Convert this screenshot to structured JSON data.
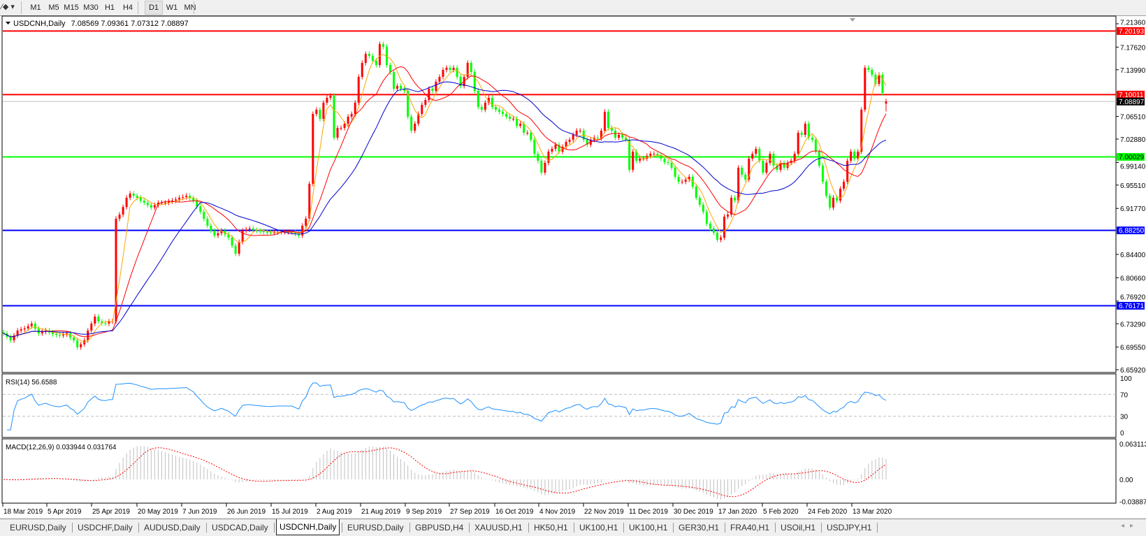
{
  "toolbar": {
    "draw_tool_icon": "line-tool-icon",
    "timeframes": [
      "M1",
      "M5",
      "M15",
      "M30",
      "H1",
      "H4",
      "D1",
      "W1",
      "MN"
    ],
    "active_timeframe": "D1"
  },
  "legend": {
    "symbol": "USDCNH,Daily",
    "ohlc": "7.08569 7.09361 7.07312 7.08897"
  },
  "rsi": {
    "label": "RSI(14) 56.6588",
    "levels": [
      70,
      30
    ],
    "axis_labels": [
      "100",
      "70",
      "30",
      "0"
    ]
  },
  "macd": {
    "label": "MACD(12,26,9) 0.033944 0.031764",
    "axis_labels": [
      "0.063113",
      "0.00",
      "-0.038872"
    ]
  },
  "tabs": [
    "EURUSD,Daily",
    "USDCHF,Daily",
    "AUDUSD,Daily",
    "USDCAD,Daily",
    "USDCNH,Daily",
    "EURUSD,Daily",
    "GBPUSD,H4",
    "XAUUSD,H1",
    "HK50,H1",
    "UK100,H1",
    "UK100,H1",
    "GER30,H1",
    "FRA40,H1",
    "USOil,H1",
    "USDJPY,H1"
  ],
  "active_tab": 4,
  "chart_data": {
    "type": "candlestick",
    "symbol": "USDCNH",
    "timeframe": "Daily",
    "ylim": [
      6.6592,
      7.2136
    ],
    "price_ticks": [
      "7.21360",
      "7.17620",
      "7.13990",
      "7.06510",
      "7.02880",
      "6.99140",
      "6.95510",
      "6.91770",
      "6.84400",
      "6.80660",
      "6.76920",
      "6.73290",
      "6.69550",
      "6.65920"
    ],
    "x_tick_labels": [
      "18 Mar 2019",
      "5 Apr 2019",
      "25 Apr 2019",
      "20 May 2019",
      "7 Jun 2019",
      "26 Jun 2019",
      "15 Jul 2019",
      "2 Aug 2019",
      "21 Aug 2019",
      "9 Sep 2019",
      "27 Sep 2019",
      "16 Oct 2019",
      "4 Nov 2019",
      "22 Nov 2019",
      "11 Dec 2019",
      "30 Dec 2019",
      "17 Jan 2020",
      "5 Feb 2020",
      "24 Feb 2020",
      "13 Mar 2020"
    ],
    "last_bar": {
      "open": 7.08569,
      "high": 7.09361,
      "low": 7.07312,
      "close": 7.08897
    },
    "horizontal_levels": [
      {
        "value": "7.20193",
        "color": "#ff0000"
      },
      {
        "value": "7.10011",
        "color": "#ff0000"
      },
      {
        "value": "7.00029",
        "color": "#00ff00"
      },
      {
        "value": "6.88250",
        "color": "#0000ff"
      },
      {
        "value": "6.76171",
        "color": "#0000ff"
      }
    ],
    "current_price": {
      "value": "7.08897",
      "color": "#000000"
    },
    "colors": {
      "bull": "#ff0000",
      "bear": "#00ff00",
      "rsi": "#1e90ff",
      "macd_hist": "#c0c0c0",
      "macd_signal": "#ff0000"
    },
    "moving_averages": [
      {
        "period": 5,
        "color": "#ffa500"
      },
      {
        "period": 13,
        "color": "#ff0000"
      },
      {
        "period": 25,
        "color": "#0000cd"
      }
    ],
    "closes": [
      6.7175,
      6.712,
      6.7063,
      6.714,
      6.722,
      6.724,
      6.7254,
      6.729,
      6.7332,
      6.725,
      6.7175,
      6.72,
      6.722,
      6.719,
      6.7164,
      6.715,
      6.7142,
      6.716,
      6.7175,
      6.711,
      6.7063,
      6.6951,
      6.7,
      6.7063,
      6.722,
      6.733,
      6.7444,
      6.7366,
      6.734,
      6.7332,
      6.7366,
      6.7366,
      6.9012,
      6.9079,
      6.92,
      6.9348,
      6.9415,
      6.938,
      6.9348,
      6.93,
      6.9269,
      6.923,
      6.9191,
      6.923,
      6.9269,
      6.9269,
      6.9269,
      6.929,
      6.9303,
      6.932,
      6.9348,
      6.936,
      6.9381,
      6.934,
      6.9303,
      6.921,
      6.9124,
      6.901,
      6.89,
      6.882,
      6.8743,
      6.878,
      6.8821,
      6.876,
      6.8709,
      6.858,
      6.8452,
      6.864,
      6.8821,
      6.884,
      6.8855,
      6.883,
      6.8821,
      6.881,
      6.8799,
      6.879,
      6.8788,
      6.8795,
      6.8799,
      6.8799,
      6.8799,
      6.8799,
      6.8799,
      6.877,
      6.8743,
      6.89,
      6.9012,
      6.9572,
      7.0691,
      7.0759,
      7.0613,
      7.0871,
      7.0949,
      7.0983,
      7.0311,
      7.0467,
      7.0467,
      7.0535,
      7.0647,
      7.0691,
      7.0871,
      7.1285,
      7.1509,
      7.1654,
      7.1621,
      7.1543,
      7.1475,
      7.1811,
      7.1766,
      7.1475,
      7.1363,
      7.1095,
      7.1139,
      7.1095,
      7.1061,
      7.0647,
      7.0423,
      7.0535,
      7.0691,
      7.0837,
      7.0915,
      7.1095,
      7.1061,
      7.1207,
      7.1285,
      7.1397,
      7.1431,
      7.1397,
      7.1431,
      7.1285,
      7.1139,
      7.1285,
      7.1509,
      7.1363,
      7.1061,
      7.0803,
      7.0759,
      7.0871,
      7.0949,
      7.0803,
      7.0759,
      7.0725,
      7.0691,
      7.0647,
      7.0613,
      7.0613,
      7.0501,
      7.0535,
      7.0389,
      7.0389,
      7.0277,
      7.0053,
      6.9941,
      6.9751,
      6.9908,
      7.0087,
      7.0132,
      7.0199,
      7.0087,
      7.0165,
      7.0244,
      7.0277,
      7.0356,
      7.0423,
      7.0423,
      7.0277,
      7.0199,
      7.0277,
      7.0311,
      7.03,
      7.0423,
      7.0725,
      7.0467,
      7.0423,
      7.0311,
      7.0356,
      7.0311,
      7.0277,
      6.9796,
      7.0087,
      6.9941,
      6.9975,
      6.9975,
      7.002,
      7.0053,
      7.0053,
      7.0031,
      6.9975,
      6.9919,
      6.9908,
      6.9829,
      6.9684,
      6.9605,
      6.9605,
      6.9639,
      6.9684,
      6.9527,
      6.9348,
      6.9236,
      6.9124,
      6.8933,
      6.8855,
      6.8788,
      6.8676,
      6.8709,
      6.9045,
      6.9079,
      6.9348,
      6.9303,
      6.9829,
      6.9717,
      6.9639,
      6.9975,
      7.0053,
      7.0132,
      6.9941,
      6.9751,
      6.9908,
      7.0053,
      6.9863,
      6.9796,
      6.9908,
      6.9829,
      6.9908,
      6.9941,
      7.0053,
      7.0389,
      7.0356,
      7.0535,
      7.0311,
      7.0277,
      7.0087,
      6.9863,
      6.9605,
      6.9381,
      6.9191,
      6.9348,
      6.9303,
      6.9493,
      6.9605,
      6.9941,
      7.0087,
      6.9975,
      7.0087,
      7.0759,
      7.1431,
      7.1397,
      7.1319,
      7.1173,
      7.1319,
      7.1027,
      7.08897
    ]
  }
}
